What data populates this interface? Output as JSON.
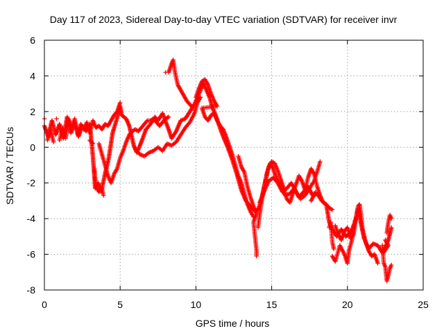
{
  "chart_data": {
    "type": "scatter",
    "title": "Day 117 of 2023, Sidereal Day-to-day VTEC variation (SDTVAR) for receiver invr",
    "xlabel": "GPS time / hours",
    "ylabel": "SDTVAR / TECUs",
    "xlim": [
      0,
      25
    ],
    "ylim": [
      -8,
      6
    ],
    "xticks": [
      0,
      5,
      10,
      15,
      20,
      25
    ],
    "yticks": [
      -8,
      -6,
      -4,
      -2,
      0,
      2,
      4,
      6
    ],
    "grid": true,
    "marker": "+",
    "color": "#ff0000",
    "trace": [
      [
        0.0,
        1.2
      ],
      [
        0.25,
        0.6
      ],
      [
        0.5,
        1.5
      ],
      [
        0.75,
        0.7
      ],
      [
        1.0,
        1.3
      ],
      [
        1.25,
        0.5
      ],
      [
        1.5,
        1.7
      ],
      [
        1.75,
        0.8
      ],
      [
        2.0,
        1.4
      ],
      [
        2.25,
        0.6
      ],
      [
        2.5,
        1.2
      ],
      [
        2.75,
        0.9
      ],
      [
        3.0,
        1.3
      ],
      [
        3.2,
        -0.5
      ],
      [
        3.35,
        -2.3
      ],
      [
        3.55,
        -2.0
      ],
      [
        3.75,
        -2.5
      ],
      [
        4.0,
        -1.5
      ],
      [
        4.25,
        -0.6
      ],
      [
        4.5,
        0.8
      ],
      [
        4.75,
        1.5
      ],
      [
        5.0,
        2.3
      ],
      [
        5.1,
        1.8
      ],
      [
        5.4,
        1.6
      ],
      [
        5.6,
        1.2
      ],
      [
        5.9,
        0.1
      ],
      [
        6.1,
        -0.3
      ],
      [
        6.4,
        0.3
      ],
      [
        6.7,
        1.0
      ],
      [
        7.0,
        1.3
      ],
      [
        7.3,
        1.7
      ],
      [
        7.5,
        1.5
      ],
      [
        7.8,
        1.9
      ],
      [
        8.2,
        1.0
      ],
      [
        8.4,
        0.5
      ],
      [
        8.7,
        0.9
      ],
      [
        9.0,
        1.5
      ],
      [
        9.3,
        1.6
      ],
      [
        9.6,
        2.0
      ],
      [
        9.9,
        2.4
      ],
      [
        10.2,
        3.0
      ],
      [
        10.5,
        3.6
      ],
      [
        10.7,
        3.2
      ],
      [
        10.9,
        2.8
      ],
      [
        11.1,
        2.2
      ],
      [
        11.3,
        1.8
      ],
      [
        11.5,
        1.3
      ],
      [
        11.8,
        0.6
      ],
      [
        12.1,
        0.0
      ],
      [
        12.4,
        -0.7
      ],
      [
        12.7,
        -1.5
      ],
      [
        13.0,
        -2.4
      ],
      [
        13.3,
        -3.0
      ],
      [
        13.6,
        -3.3
      ],
      [
        13.9,
        -3.6
      ],
      [
        14.1,
        -3.5
      ],
      [
        14.3,
        -3.0
      ],
      [
        14.5,
        -2.2
      ],
      [
        14.7,
        -1.4
      ],
      [
        14.9,
        -0.9
      ],
      [
        15.1,
        -1.2
      ],
      [
        15.3,
        -1.7
      ],
      [
        15.6,
        -2.2
      ],
      [
        15.9,
        -2.7
      ],
      [
        16.2,
        -2.6
      ],
      [
        16.5,
        -2.3
      ],
      [
        16.8,
        -2.8
      ],
      [
        17.1,
        -2.5
      ],
      [
        17.4,
        -2.2
      ],
      [
        17.7,
        -2.7
      ],
      [
        18.0,
        -2.6
      ],
      [
        18.3,
        -3.0
      ],
      [
        18.6,
        -3.2
      ],
      [
        18.8,
        -4.2
      ],
      [
        19.0,
        -4.6
      ],
      [
        19.3,
        -5.0
      ],
      [
        19.6,
        -4.6
      ],
      [
        19.9,
        -5.0
      ],
      [
        20.2,
        -4.8
      ],
      [
        20.5,
        -4.2
      ],
      [
        20.7,
        -3.4
      ],
      [
        20.9,
        -4.3
      ],
      [
        21.1,
        -5.1
      ],
      [
        21.4,
        -5.7
      ],
      [
        21.7,
        -5.4
      ],
      [
        22.0,
        -5.5
      ],
      [
        22.3,
        -5.9
      ],
      [
        22.5,
        -5.6
      ],
      [
        22.7,
        -5.2
      ],
      [
        22.9,
        -4.5
      ]
    ],
    "scatter_points": [
      [
        0.0,
        1.6
      ],
      [
        0.2,
        0.4
      ],
      [
        0.4,
        1.0
      ],
      [
        0.6,
        0.3
      ],
      [
        0.8,
        1.6
      ],
      [
        1.0,
        0.4
      ],
      [
        1.2,
        1.1
      ],
      [
        1.4,
        0.5
      ],
      [
        1.6,
        1.6
      ],
      [
        1.8,
        1.1
      ],
      [
        2.0,
        1.6
      ],
      [
        2.2,
        0.7
      ],
      [
        2.4,
        1.3
      ],
      [
        2.6,
        1.0
      ],
      [
        2.8,
        1.4
      ],
      [
        3.0,
        0.8
      ],
      [
        3.2,
        1.5
      ],
      [
        3.4,
        1.1
      ],
      [
        3.6,
        1.2
      ],
      [
        3.8,
        1.0
      ],
      [
        4.0,
        1.3
      ],
      [
        4.2,
        1.2
      ],
      [
        4.4,
        1.5
      ],
      [
        4.6,
        1.8
      ],
      [
        4.8,
        2.0
      ],
      [
        5.0,
        2.5
      ],
      [
        3.0,
        0.4
      ],
      [
        3.2,
        0.2
      ],
      [
        3.3,
        -1.2
      ],
      [
        3.4,
        -2.2
      ],
      [
        3.6,
        -2.5
      ],
      [
        3.8,
        -2.3
      ],
      [
        3.9,
        -2.7
      ],
      [
        3.6,
        0.2
      ],
      [
        3.8,
        -0.4
      ],
      [
        4.0,
        -1.0
      ],
      [
        4.2,
        -1.6
      ],
      [
        4.4,
        -2.0
      ],
      [
        4.6,
        -1.5
      ],
      [
        4.8,
        -1.2
      ],
      [
        5.0,
        -0.6
      ],
      [
        5.2,
        -0.2
      ],
      [
        5.4,
        0.3
      ],
      [
        5.6,
        0.7
      ],
      [
        5.8,
        0.9
      ],
      [
        6.0,
        1.0
      ],
      [
        6.2,
        0.9
      ],
      [
        6.4,
        1.1
      ],
      [
        6.6,
        1.3
      ],
      [
        6.8,
        1.5
      ],
      [
        7.0,
        1.5
      ],
      [
        7.2,
        1.6
      ],
      [
        7.4,
        1.4
      ],
      [
        7.6,
        1.2
      ],
      [
        7.8,
        1.4
      ],
      [
        8.0,
        1.6
      ],
      [
        8.2,
        1.7
      ],
      [
        6.0,
        -0.1
      ],
      [
        6.3,
        -0.4
      ],
      [
        6.6,
        -0.5
      ],
      [
        6.9,
        -0.3
      ],
      [
        7.2,
        -0.2
      ],
      [
        7.5,
        0.0
      ],
      [
        7.8,
        -0.2
      ],
      [
        8.1,
        0.2
      ],
      [
        8.4,
        0.1
      ],
      [
        8.7,
        0.3
      ],
      [
        9.0,
        0.7
      ],
      [
        9.3,
        1.1
      ],
      [
        9.6,
        1.4
      ],
      [
        9.9,
        1.9
      ],
      [
        10.1,
        2.5
      ],
      [
        10.3,
        2.8
      ],
      [
        8.2,
        4.2
      ],
      [
        8.4,
        4.7
      ],
      [
        8.5,
        4.9
      ],
      [
        8.6,
        4.3
      ],
      [
        8.8,
        3.5
      ],
      [
        9.0,
        3.2
      ],
      [
        9.2,
        2.9
      ],
      [
        9.4,
        2.6
      ],
      [
        9.6,
        2.4
      ],
      [
        9.8,
        2.2
      ],
      [
        8.0,
        4.2
      ],
      [
        10.0,
        2.8
      ],
      [
        10.2,
        3.3
      ],
      [
        10.4,
        3.7
      ],
      [
        10.6,
        3.8
      ],
      [
        10.8,
        3.5
      ],
      [
        11.0,
        3.0
      ],
      [
        11.2,
        2.6
      ],
      [
        11.4,
        2.3
      ],
      [
        10.4,
        2.2
      ],
      [
        10.6,
        1.7
      ],
      [
        10.8,
        1.5
      ],
      [
        11.0,
        1.8
      ],
      [
        11.2,
        1.9
      ],
      [
        11.4,
        1.5
      ],
      [
        11.6,
        1.2
      ],
      [
        11.8,
        1.0
      ],
      [
        12.0,
        0.6
      ],
      [
        12.2,
        0.1
      ],
      [
        12.4,
        -0.4
      ],
      [
        12.6,
        -1.0
      ],
      [
        12.8,
        -1.6
      ],
      [
        13.0,
        -2.0
      ],
      [
        13.2,
        -2.6
      ],
      [
        13.4,
        -3.2
      ],
      [
        13.6,
        -3.6
      ],
      [
        13.8,
        -3.9
      ],
      [
        12.8,
        -0.5
      ],
      [
        13.0,
        -1.1
      ],
      [
        13.2,
        -1.4
      ],
      [
        13.4,
        -2.2
      ],
      [
        13.6,
        -2.8
      ],
      [
        13.8,
        -3.3
      ],
      [
        14.0,
        -3.7
      ],
      [
        13.8,
        -4.2
      ],
      [
        13.9,
        -5.0
      ],
      [
        14.0,
        -5.8
      ],
      [
        14.0,
        -6.1
      ],
      [
        14.1,
        -4.5
      ],
      [
        14.2,
        -3.8
      ],
      [
        14.4,
        -2.7
      ],
      [
        14.6,
        -1.9
      ],
      [
        14.8,
        -1.1
      ],
      [
        15.0,
        -0.8
      ],
      [
        15.2,
        -0.9
      ],
      [
        15.4,
        -1.3
      ],
      [
        15.6,
        -1.8
      ],
      [
        15.8,
        -2.3
      ],
      [
        16.0,
        -2.9
      ],
      [
        16.2,
        -3.1
      ],
      [
        16.4,
        -2.6
      ],
      [
        16.6,
        -2.1
      ],
      [
        16.8,
        -1.6
      ],
      [
        17.0,
        -1.9
      ],
      [
        17.2,
        -2.4
      ],
      [
        17.4,
        -1.7
      ],
      [
        17.6,
        -1.2
      ],
      [
        17.8,
        -1.5
      ],
      [
        18.0,
        -2.2
      ],
      [
        18.2,
        -2.7
      ],
      [
        18.4,
        -3.1
      ],
      [
        18.6,
        -3.2
      ],
      [
        18.8,
        -3.4
      ],
      [
        19.0,
        -3.5
      ],
      [
        14.2,
        -3.1
      ],
      [
        14.5,
        -2.5
      ],
      [
        14.8,
        -1.9
      ],
      [
        15.1,
        -1.7
      ],
      [
        15.4,
        -2.0
      ],
      [
        15.7,
        -2.5
      ],
      [
        16.0,
        -2.3
      ],
      [
        16.3,
        -2.0
      ],
      [
        16.6,
        -2.5
      ],
      [
        16.9,
        -2.9
      ],
      [
        17.2,
        -2.7
      ],
      [
        17.5,
        -2.3
      ],
      [
        17.8,
        -1.9
      ],
      [
        18.1,
        -1.1
      ],
      [
        18.2,
        -0.8
      ],
      [
        17.6,
        -3.0
      ],
      [
        17.9,
        -2.5
      ],
      [
        18.8,
        -4.5
      ],
      [
        18.9,
        -4.2
      ],
      [
        19.0,
        -5.3
      ],
      [
        19.1,
        -5.7
      ],
      [
        19.2,
        -4.4
      ],
      [
        19.4,
        -4.9
      ],
      [
        19.6,
        -5.2
      ],
      [
        19.8,
        -4.7
      ],
      [
        20.0,
        -4.5
      ],
      [
        20.2,
        -5.1
      ],
      [
        20.4,
        -4.9
      ],
      [
        20.6,
        -3.8
      ],
      [
        20.7,
        -3.3
      ],
      [
        20.8,
        -3.2
      ],
      [
        20.9,
        -3.8
      ],
      [
        21.0,
        -4.6
      ],
      [
        21.2,
        -5.3
      ],
      [
        21.4,
        -5.8
      ],
      [
        21.6,
        -6.1
      ],
      [
        21.8,
        -6.0
      ],
      [
        22.0,
        -6.5
      ],
      [
        19.0,
        -6.1
      ],
      [
        19.2,
        -6.4
      ],
      [
        19.5,
        -5.5
      ],
      [
        19.8,
        -6.0
      ],
      [
        20.0,
        -6.5
      ],
      [
        20.1,
        -5.8
      ],
      [
        20.3,
        -5.2
      ],
      [
        20.5,
        -4.1
      ],
      [
        22.3,
        -5.5
      ],
      [
        22.4,
        -6.5
      ],
      [
        22.5,
        -6.7
      ],
      [
        22.6,
        -7.5
      ],
      [
        22.7,
        -7.2
      ],
      [
        22.8,
        -6.8
      ],
      [
        22.9,
        -6.6
      ],
      [
        22.6,
        -4.8
      ],
      [
        22.7,
        -4.2
      ],
      [
        22.8,
        -3.8
      ],
      [
        22.9,
        -4.0
      ],
      [
        22.5,
        -5.2
      ],
      [
        22.7,
        -5.5
      ],
      [
        22.4,
        -5.9
      ]
    ]
  }
}
